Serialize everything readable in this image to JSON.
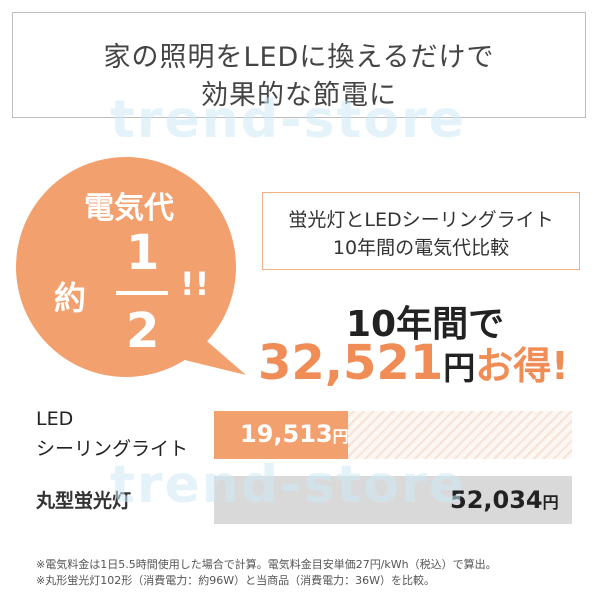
{
  "header": {
    "line1": "家の照明をLEDに換えるだけで",
    "line2": "効果的な節電に"
  },
  "badge": {
    "top": "電気代",
    "yaku": "約",
    "numerator": "1",
    "denominator": "2",
    "exclaim": "!!",
    "color": "#f3a06f"
  },
  "compare_box": {
    "line1": "蛍光灯とLEDシーリングライト",
    "line2": "10年間の電気代比較"
  },
  "savings": {
    "prefix": "10年間で",
    "amount": "32,521",
    "yen": "円",
    "suffix": "お得!"
  },
  "bars": {
    "led": {
      "label_line1": "LED",
      "label_line2": "シーリングライト",
      "amount": "19,513",
      "yen": "円",
      "value": 19513,
      "color": "#f3a06f"
    },
    "fluorescent": {
      "label": "丸型蛍光灯",
      "amount": "52,034",
      "yen": "円",
      "value": 52034,
      "color": "#d9d9d9"
    }
  },
  "notes": [
    "※電気料金は1日5.5時間使用した場合で計算。電気料金目安単価27円/kWh（税込）で算出。",
    "※丸形蛍光灯102形（消費電力：約96W）と当商品（消費電力：36W）を比較。"
  ],
  "watermark": "trend-store"
}
